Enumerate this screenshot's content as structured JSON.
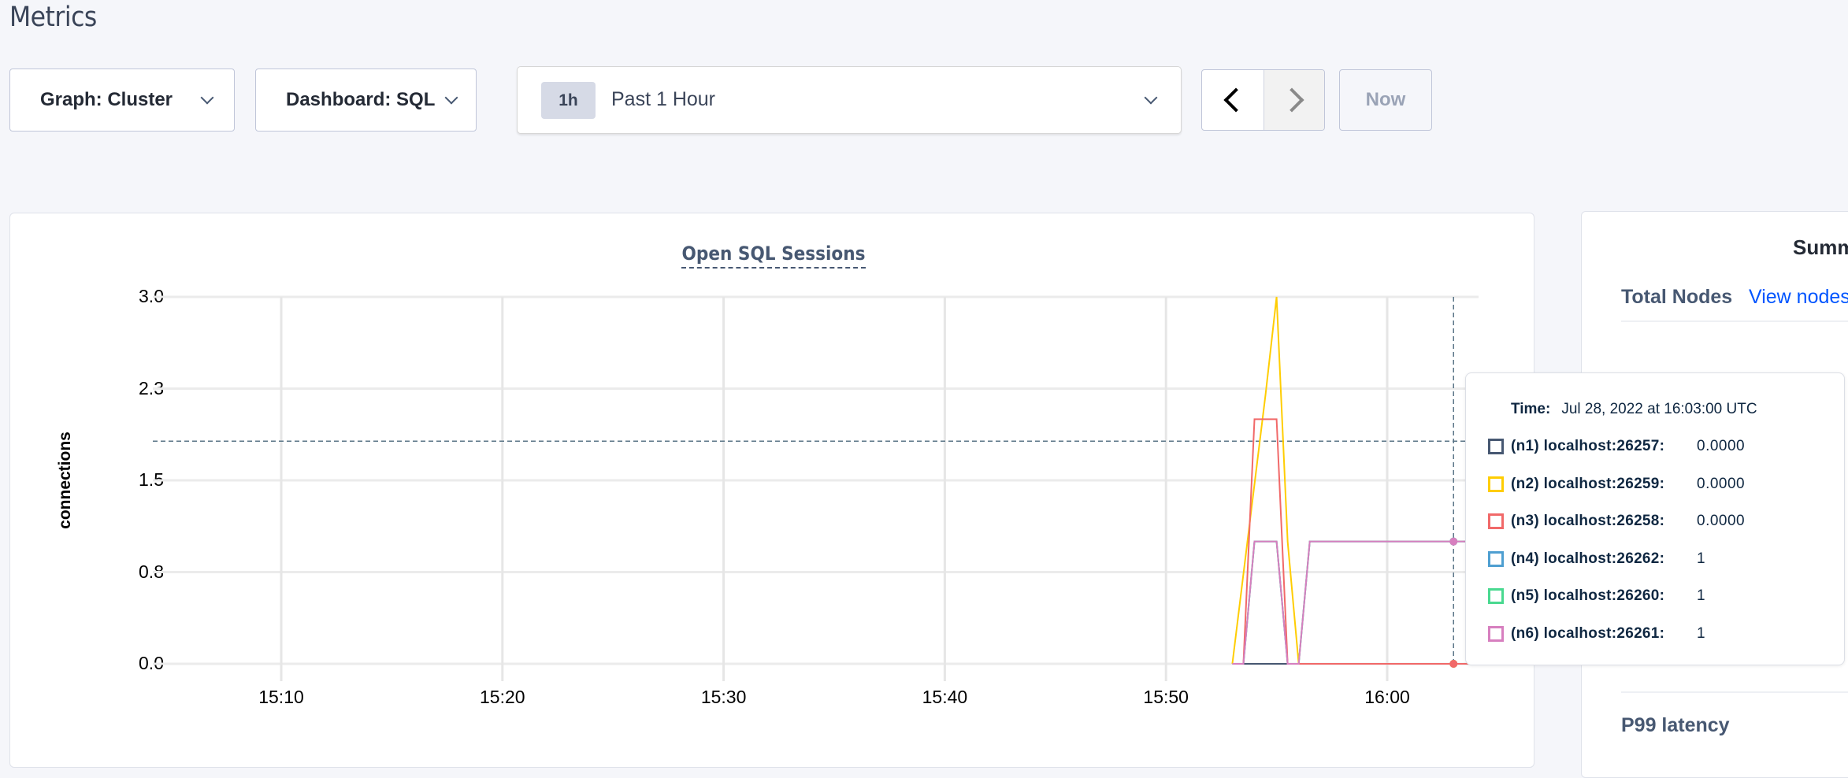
{
  "page": {
    "title": "Metrics"
  },
  "toolbar": {
    "graph_label": "Graph: Cluster",
    "dashboard_label": "Dashboard: SQL",
    "time_badge": "1h",
    "time_range": "Past 1 Hour",
    "prev_icon": "chevron-left-icon",
    "next_icon": "chevron-right-icon",
    "now_label": "Now"
  },
  "summary": {
    "title_partial": "Summ",
    "total_nodes_label": "Total Nodes",
    "view_nodes_link": "View nodes",
    "p99_label": "P99 latency",
    "link_color": "#0055ff"
  },
  "tooltip": {
    "time_label": "Time:",
    "time_value": "Jul 28, 2022 at 16:03:00 UTC",
    "rows": [
      {
        "name": "(n1) localhost:26257:",
        "value": "0.0000",
        "color": "#475872"
      },
      {
        "name": "(n2) localhost:26259:",
        "value": "0.0000",
        "color": "#ffcd02"
      },
      {
        "name": "(n3) localhost:26258:",
        "value": "0.0000",
        "color": "#f16969"
      },
      {
        "name": "(n4) localhost:26262:",
        "value": "1",
        "color": "#4e9fd1"
      },
      {
        "name": "(n5) localhost:26260:",
        "value": "1",
        "color": "#49d990"
      },
      {
        "name": "(n6) localhost:26261:",
        "value": "1",
        "color": "#d77fbf"
      }
    ]
  },
  "chart_data": {
    "type": "line",
    "title": "Open SQL Sessions",
    "xlabel": "",
    "ylabel": "connections",
    "xlim": [
      "15:04:00",
      "16:04:00"
    ],
    "ylim": [
      0,
      3
    ],
    "yticks": [
      "0.0",
      "0.8",
      "1.5",
      "2.3",
      "3.0"
    ],
    "ytick_values": [
      0,
      0.75,
      1.5,
      2.25,
      3
    ],
    "xticks": [
      "15:10",
      "15:20",
      "15:30",
      "15:40",
      "15:50",
      "16:00"
    ],
    "grid": true,
    "hover_time": "16:03:00",
    "hover_value_line": 1.82,
    "series": [
      {
        "name": "(n1) localhost:26257",
        "color": "#475872",
        "x": [
          "15:53:00",
          "16:04:00"
        ],
        "y": [
          0,
          0
        ]
      },
      {
        "name": "(n4) localhost:26262",
        "color": "#4e9fd1",
        "x": [
          "15:53:00",
          "15:53:30",
          "15:54:00",
          "15:55:00",
          "15:55:30",
          "15:56:00",
          "15:56:30",
          "16:04:00"
        ],
        "y": [
          0,
          0,
          1,
          1,
          0,
          0,
          1,
          1
        ]
      },
      {
        "name": "(n5) localhost:26260",
        "color": "#49d990",
        "x": [
          "15:53:00",
          "15:53:30",
          "15:54:00",
          "15:55:00",
          "15:55:30",
          "15:56:00",
          "15:56:30",
          "16:04:00"
        ],
        "y": [
          0,
          0,
          1,
          1,
          0,
          0,
          1,
          1
        ]
      },
      {
        "name": "(n2) localhost:26259",
        "color": "#ffcd02",
        "x": [
          "15:53:00",
          "15:54:30",
          "15:55:00",
          "15:55:30",
          "15:56:00",
          "16:04:00"
        ],
        "y": [
          0,
          2.2,
          3,
          1,
          0,
          0
        ]
      },
      {
        "name": "(n3) localhost:26258",
        "color": "#f16969",
        "x": [
          "15:53:00",
          "15:53:30",
          "15:54:00",
          "15:55:00",
          "15:55:30",
          "16:04:00"
        ],
        "y": [
          0,
          0,
          2,
          2,
          0,
          0
        ]
      },
      {
        "name": "(n6) localhost:26261",
        "color": "#d77fbf",
        "x": [
          "15:53:00",
          "15:53:30",
          "15:54:00",
          "15:55:00",
          "15:55:30",
          "15:56:00",
          "15:56:30",
          "16:04:00"
        ],
        "y": [
          0,
          0,
          1,
          1,
          0,
          0,
          1,
          1
        ]
      }
    ]
  }
}
